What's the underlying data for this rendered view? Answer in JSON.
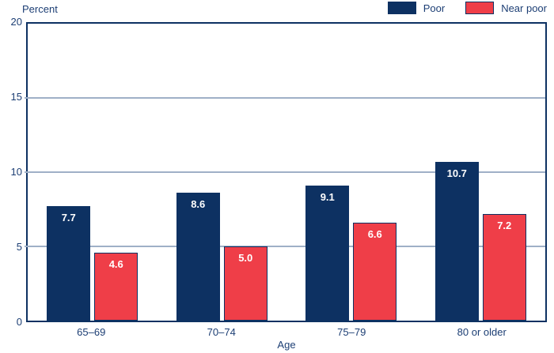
{
  "colors": {
    "navy": "#0d3162",
    "red": "#ef3e48",
    "gridline": "#9fb0c7",
    "text": "#1c3e74",
    "frame": "#0d3162",
    "value_label": "#ffffff"
  },
  "legend": {
    "items": [
      {
        "label": "Poor",
        "color": "#0d3162"
      },
      {
        "label": "Near poor",
        "color": "#ef3e48"
      }
    ]
  },
  "chart_data": {
    "type": "bar",
    "title": "",
    "xlabel": "Age",
    "ylabel": "Percent",
    "categories": [
      "65–69",
      "70–74",
      "75–79",
      "80 or older"
    ],
    "series": [
      {
        "name": "Poor",
        "color": "#0d3162",
        "values": [
          7.7,
          8.6,
          9.1,
          10.7
        ],
        "labels": [
          "7.7",
          "8.6",
          "9.1",
          "10.7"
        ]
      },
      {
        "name": "Near poor",
        "color": "#ef3e48",
        "values": [
          4.6,
          5.0,
          6.6,
          7.2
        ],
        "labels": [
          "4.6",
          "5.0",
          "6.6",
          "7.2"
        ]
      }
    ],
    "ylim": [
      0,
      20
    ],
    "yticks": [
      0,
      5,
      10,
      15,
      20
    ],
    "gridlines_at": [
      5,
      10,
      15
    ],
    "grid": true,
    "legend_position": "top-right",
    "value_label_style": "inside-bar-top-white-bold"
  }
}
